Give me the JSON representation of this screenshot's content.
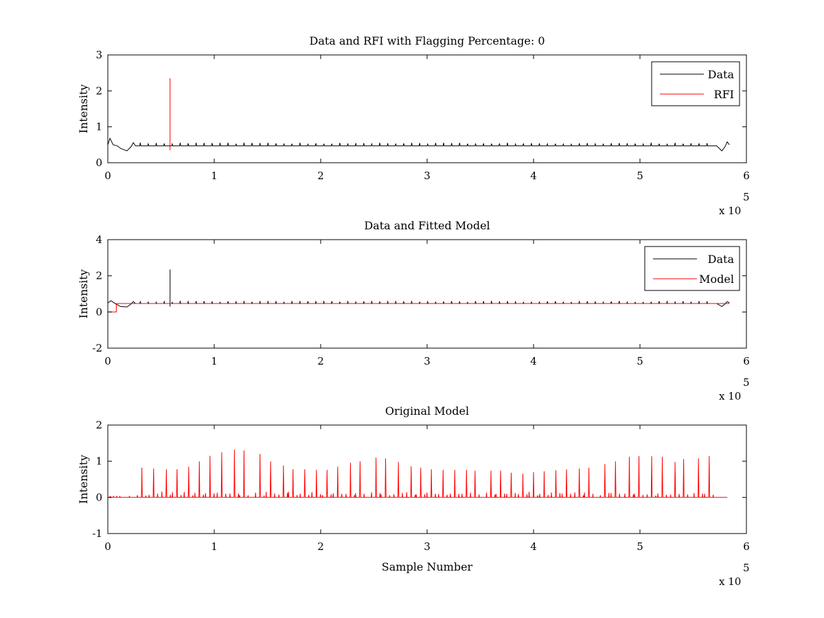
{
  "figure": {
    "background": "#ffffff"
  },
  "chart_data": [
    {
      "type": "line",
      "title": "Data and RFI with Flagging Percentage: 0",
      "xlabel": "",
      "ylabel": "Intensity",
      "xlim": [
        0,
        6
      ],
      "ylim": [
        0,
        3
      ],
      "xticks": [
        0,
        1,
        2,
        3,
        4,
        5,
        6
      ],
      "yticks": [
        0,
        1,
        2,
        3
      ],
      "x_multiplier": "x 10",
      "x_multiplier_exp": "5",
      "legend": {
        "placement": "top-right",
        "entries": [
          "Data",
          "RFI"
        ]
      },
      "series": [
        {
          "name": "Data",
          "color": "#000000",
          "baseline": 0.47,
          "spike_period": 0.075,
          "spike_height": 0.56,
          "dips": [
            {
              "x": 0.18,
              "value": 0.33
            },
            {
              "x": 5.77,
              "value": 0.33
            }
          ],
          "edge_peaks": [
            {
              "x": 0.02,
              "value": 0.68
            },
            {
              "x": 5.82,
              "value": 0.58
            }
          ]
        },
        {
          "name": "RFI",
          "color": "#ff0000",
          "spikes": [
            {
              "x": 0.585,
              "low": 0.35,
              "high": 2.35
            }
          ]
        }
      ]
    },
    {
      "type": "line",
      "title": "Data and Fitted Model",
      "xlabel": "",
      "ylabel": "Intensity",
      "xlim": [
        0,
        6
      ],
      "ylim": [
        -2,
        4
      ],
      "xticks": [
        0,
        1,
        2,
        3,
        4,
        5,
        6
      ],
      "yticks": [
        -2,
        0,
        2,
        4
      ],
      "x_multiplier": "x 10",
      "x_multiplier_exp": "5",
      "legend": {
        "placement": "top-right",
        "entries": [
          "Data",
          "Model"
        ]
      },
      "series": [
        {
          "name": "Data",
          "color": "#000000",
          "baseline": 0.47,
          "spike_period": 0.075,
          "spike_height": 0.6,
          "big_spike": {
            "x": 0.585,
            "low": 0.3,
            "high": 2.35
          }
        },
        {
          "name": "Model",
          "color": "#ff0000",
          "baseline": 0.47,
          "step": {
            "x_start": 0.0,
            "x_end": 0.08,
            "value": 0.0
          }
        }
      ]
    },
    {
      "type": "line",
      "title": "Original Model",
      "xlabel": "Sample Number",
      "ylabel": "Intensity",
      "xlim": [
        0,
        6
      ],
      "ylim": [
        -1,
        2
      ],
      "xticks": [
        0,
        1,
        2,
        3,
        4,
        5,
        6
      ],
      "yticks": [
        -1,
        0,
        1,
        2
      ],
      "x_multiplier": "x 10",
      "x_multiplier_exp": "5",
      "series": [
        {
          "name": "Model",
          "color": "#ff0000",
          "x_end": 5.82,
          "peaks": [
            [
              0.32,
              0.82
            ],
            [
              0.43,
              0.8
            ],
            [
              0.55,
              0.78
            ],
            [
              0.65,
              0.78
            ],
            [
              0.76,
              0.85
            ],
            [
              0.86,
              1.0
            ],
            [
              0.96,
              1.15
            ],
            [
              1.07,
              1.25
            ],
            [
              1.19,
              1.32
            ],
            [
              1.28,
              1.3
            ],
            [
              1.43,
              1.2
            ],
            [
              1.53,
              1.0
            ],
            [
              1.65,
              0.88
            ],
            [
              1.74,
              0.78
            ],
            [
              1.85,
              0.78
            ],
            [
              1.96,
              0.76
            ],
            [
              2.06,
              0.76
            ],
            [
              2.16,
              0.85
            ],
            [
              2.28,
              0.96
            ],
            [
              2.37,
              1.0
            ],
            [
              2.52,
              1.1
            ],
            [
              2.61,
              1.08
            ],
            [
              2.73,
              0.98
            ],
            [
              2.85,
              0.86
            ],
            [
              2.94,
              0.82
            ],
            [
              3.04,
              0.78
            ],
            [
              3.15,
              0.76
            ],
            [
              3.26,
              0.76
            ],
            [
              3.37,
              0.76
            ],
            [
              3.45,
              0.74
            ],
            [
              3.6,
              0.74
            ],
            [
              3.69,
              0.74
            ],
            [
              3.79,
              0.68
            ],
            [
              3.9,
              0.66
            ],
            [
              4.0,
              0.7
            ],
            [
              4.1,
              0.72
            ],
            [
              4.21,
              0.75
            ],
            [
              4.31,
              0.78
            ],
            [
              4.43,
              0.8
            ],
            [
              4.52,
              0.82
            ],
            [
              4.67,
              0.92
            ],
            [
              4.77,
              1.0
            ],
            [
              4.9,
              1.12
            ],
            [
              4.99,
              1.14
            ],
            [
              5.11,
              1.14
            ],
            [
              5.21,
              1.12
            ],
            [
              5.33,
              0.98
            ],
            [
              5.41,
              1.06
            ],
            [
              5.55,
              1.08
            ],
            [
              5.65,
              1.14
            ]
          ]
        }
      ]
    }
  ]
}
